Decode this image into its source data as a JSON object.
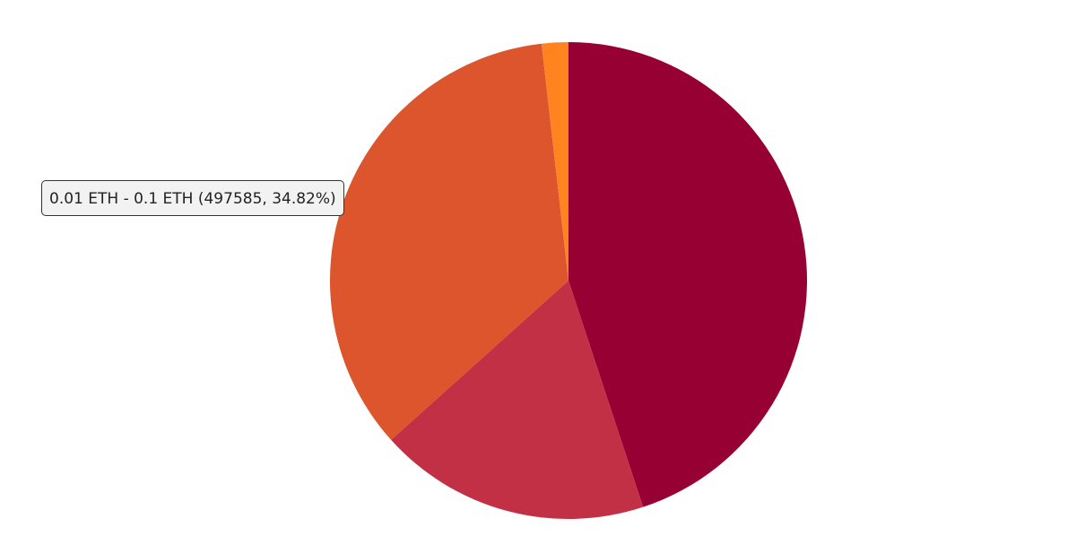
{
  "chart_data": {
    "type": "pie",
    "categories": [
      null,
      null,
      "0.01 ETH - 0.1 ETH",
      null
    ],
    "values": [
      44.9,
      18.4,
      34.82,
      1.8
    ],
    "colors": [
      "#960032",
      "#c13044",
      "#dc552c",
      "#ff8420"
    ],
    "start_angle": 0,
    "direction": "clockwise",
    "tooltip": "0.01 ETH - 0.1 ETH (497585, 34.82%)"
  }
}
